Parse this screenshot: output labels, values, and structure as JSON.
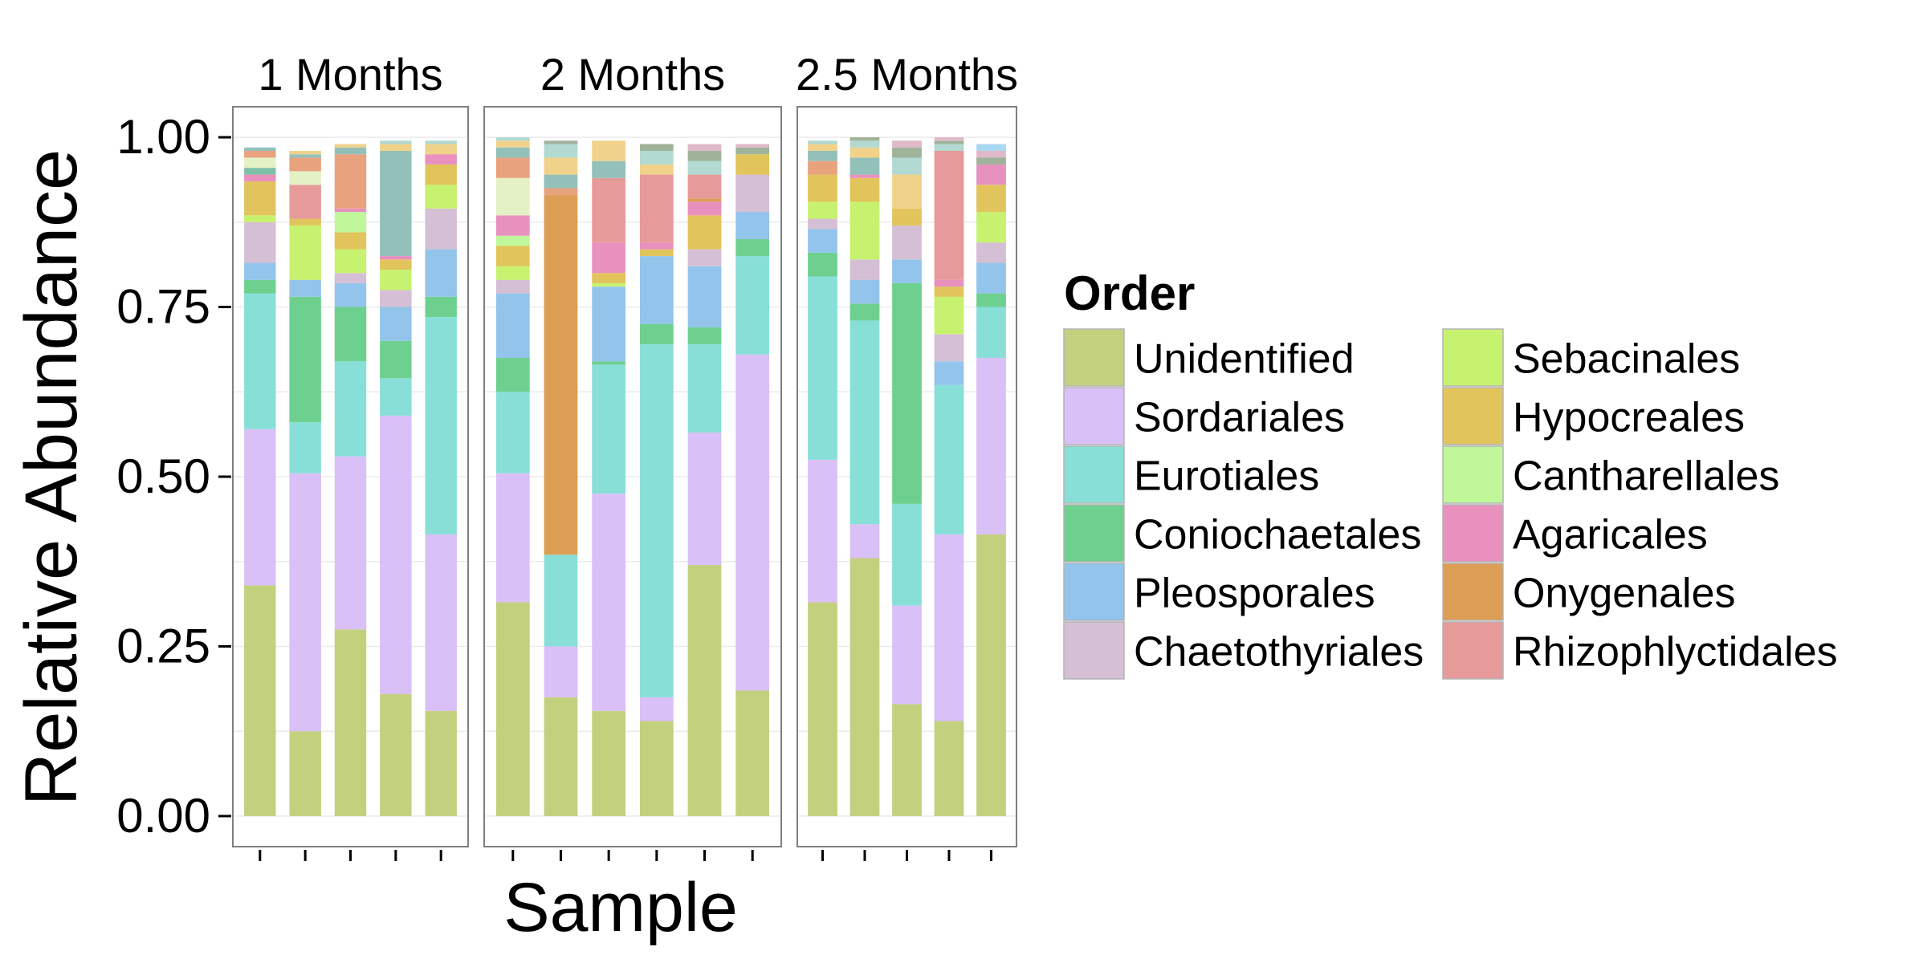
{
  "chart_data": {
    "type": "bar",
    "stacked": true,
    "xlabel": "Sample",
    "ylabel": "Relative Abundance",
    "ylim": [
      0,
      1
    ],
    "yticks": [
      "0.00",
      "0.25",
      "0.50",
      "0.75",
      "1.00"
    ],
    "legend": {
      "title": "Order",
      "position": "right",
      "columns": 2
    },
    "grid": true,
    "series": [
      {
        "name": "Unidentified",
        "color": "#c3d17f"
      },
      {
        "name": "Sordariales",
        "color": "#d9c0f7"
      },
      {
        "name": "Eurotiales",
        "color": "#88dfd8"
      },
      {
        "name": "Coniochaetales",
        "color": "#6ed08f"
      },
      {
        "name": "Pleosporales",
        "color": "#92c4ec"
      },
      {
        "name": "Chaetothyriales",
        "color": "#d4bfd4"
      },
      {
        "name": "Sebacinales",
        "color": "#c7f26f"
      },
      {
        "name": "Hypocreales",
        "color": "#e2c45c"
      },
      {
        "name": "Cantharellales",
        "color": "#c0f79a"
      },
      {
        "name": "Agaricales",
        "color": "#e891be"
      },
      {
        "name": "Onygenales",
        "color": "#dc9e55"
      },
      {
        "name": "Rhizophlyctidales",
        "color": "#e79a9a"
      }
    ],
    "other_colors": [
      "#7fbfa6",
      "#e4f1c4",
      "#e8a27e",
      "#94c0ba",
      "#f0d28a",
      "#b2d9d2",
      "#9fb39a",
      "#e0b9c9",
      "#a8d8f0",
      "#d6e6a2"
    ],
    "facets": [
      {
        "label": "1 Months",
        "samples": [
          {
            "values": [
              0.34,
              0.23,
              0.2,
              0.02,
              0.025,
              0.06,
              0.01,
              0.05,
              0.0,
              0.01,
              0.0,
              0.0
            ],
            "other": [
              0.01,
              0.015,
              0.01,
              0.005
            ]
          },
          {
            "values": [
              0.125,
              0.38,
              0.075,
              0.185,
              0.025,
              0.0,
              0.08,
              0.01,
              0.0,
              0.0,
              0.0,
              0.05
            ],
            "other": [
              0.02,
              0.02,
              0.005,
              0.005
            ]
          },
          {
            "values": [
              0.275,
              0.255,
              0.14,
              0.08,
              0.035,
              0.015,
              0.035,
              0.025,
              0.03,
              0.005,
              0.0,
              0.0
            ],
            "other": [
              0.08,
              0.01,
              0.005
            ]
          },
          {
            "values": [
              0.18,
              0.41,
              0.055,
              0.055,
              0.05,
              0.025,
              0.03,
              0.015,
              0.0,
              0.005,
              0.0,
              0.0
            ],
            "other": [
              0.155,
              0.01,
              0.005
            ]
          },
          {
            "values": [
              0.155,
              0.26,
              0.32,
              0.03,
              0.07,
              0.06,
              0.035,
              0.03,
              0.0,
              0.015,
              0.0,
              0.0
            ],
            "other": [
              0.015,
              0.005
            ]
          }
        ]
      },
      {
        "label": "2 Months",
        "samples": [
          {
            "values": [
              0.315,
              0.19,
              0.12,
              0.05,
              0.095,
              0.02,
              0.02,
              0.03,
              0.015,
              0.03,
              0.0,
              0.0
            ],
            "other": [
              0.055,
              0.03,
              0.015,
              0.01,
              0.005
            ]
          },
          {
            "values": [
              0.175,
              0.075,
              0.135,
              0.0,
              0.0,
              0.0,
              0.0,
              0.0,
              0.0,
              0.0,
              0.53,
              0.0
            ],
            "other": [
              0.01,
              0.02,
              0.025,
              0.02,
              0.005
            ]
          },
          {
            "values": [
              0.155,
              0.32,
              0.19,
              0.005,
              0.11,
              0.0,
              0.005,
              0.015,
              0.0,
              0.045,
              0.0,
              0.095
            ],
            "other": [
              0.025,
              0.03
            ]
          },
          {
            "values": [
              0.14,
              0.035,
              0.52,
              0.03,
              0.1,
              0.0,
              0.0,
              0.01,
              0.0,
              0.01,
              0.0,
              0.1
            ],
            "other": [
              0.015,
              0.02,
              0.01
            ]
          },
          {
            "values": [
              0.37,
              0.195,
              0.13,
              0.025,
              0.09,
              0.025,
              0.0,
              0.05,
              0.0,
              0.02,
              0.005,
              0.035
            ],
            "other": [
              0.02,
              0.015,
              0.01
            ]
          },
          {
            "values": [
              0.185,
              0.495,
              0.145,
              0.025,
              0.04,
              0.055,
              0.0,
              0.03,
              0.0,
              0.0,
              0.0,
              0.0
            ],
            "other": [
              0.01,
              0.005
            ]
          }
        ]
      },
      {
        "label": "2.5 Months",
        "samples": [
          {
            "values": [
              0.315,
              0.21,
              0.27,
              0.035,
              0.035,
              0.015,
              0.025,
              0.04,
              0.0,
              0.0,
              0.0,
              0.0
            ],
            "other": [
              0.02,
              0.015,
              0.01,
              0.005
            ]
          },
          {
            "values": [
              0.38,
              0.05,
              0.3,
              0.025,
              0.035,
              0.03,
              0.085,
              0.035,
              0.0,
              0.005,
              0.0,
              0.0
            ],
            "other": [
              0.025,
              0.015,
              0.01,
              0.005
            ]
          },
          {
            "values": [
              0.165,
              0.145,
              0.15,
              0.325,
              0.035,
              0.05,
              0.0,
              0.025,
              0.0,
              0.0,
              0.0,
              0.0
            ],
            "other": [
              0.05,
              0.025,
              0.015,
              0.01
            ]
          },
          {
            "values": [
              0.14,
              0.275,
              0.22,
              0.0,
              0.035,
              0.04,
              0.055,
              0.015,
              0.0,
              0.01,
              0.0,
              0.19
            ],
            "other": [
              0.01,
              0.005,
              0.005
            ]
          },
          {
            "values": [
              0.415,
              0.26,
              0.075,
              0.02,
              0.045,
              0.03,
              0.045,
              0.04,
              0.0,
              0.03,
              0.0,
              0.0
            ],
            "other": [
              0.01,
              0.01,
              0.01
            ]
          }
        ]
      }
    ]
  }
}
